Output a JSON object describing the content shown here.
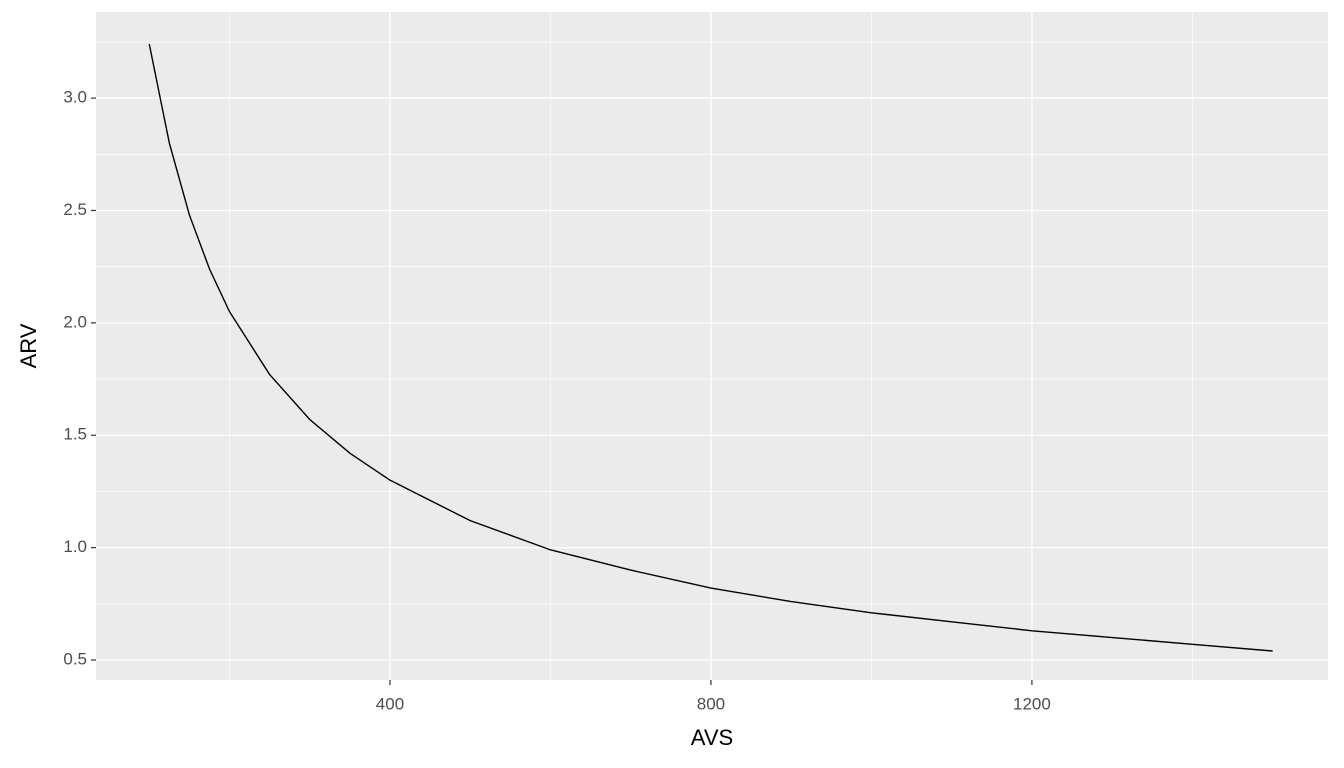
{
  "chart_data": {
    "type": "line",
    "x_label": "AVS",
    "y_label": "ARV",
    "x": [
      100,
      125,
      150,
      175,
      200,
      250,
      300,
      350,
      400,
      500,
      600,
      700,
      800,
      900,
      1000,
      1100,
      1200,
      1300,
      1400,
      1500
    ],
    "series": [
      {
        "color": "#000000",
        "values": [
          3.24,
          2.8,
          2.48,
          2.24,
          2.05,
          1.77,
          1.57,
          1.42,
          1.3,
          1.12,
          0.99,
          0.9,
          0.82,
          0.76,
          0.71,
          0.67,
          0.63,
          0.6,
          0.57,
          0.54
        ]
      }
    ],
    "xlim": [
      33.6,
      1569
    ],
    "ylim": [
      0.411,
      3.383
    ],
    "xticks": [
      400,
      800,
      1200
    ],
    "yticks": [
      {
        "value": 0.5,
        "label": "0.5"
      },
      {
        "value": 1.0,
        "label": "1.0"
      },
      {
        "value": 1.5,
        "label": "1.5"
      },
      {
        "value": 2.0,
        "label": "2.0"
      },
      {
        "value": 2.5,
        "label": "2.5"
      },
      {
        "value": 3.0,
        "label": "3.0"
      }
    ],
    "grid": true,
    "minor_grid": true,
    "panel_color": "#ebebeb"
  }
}
